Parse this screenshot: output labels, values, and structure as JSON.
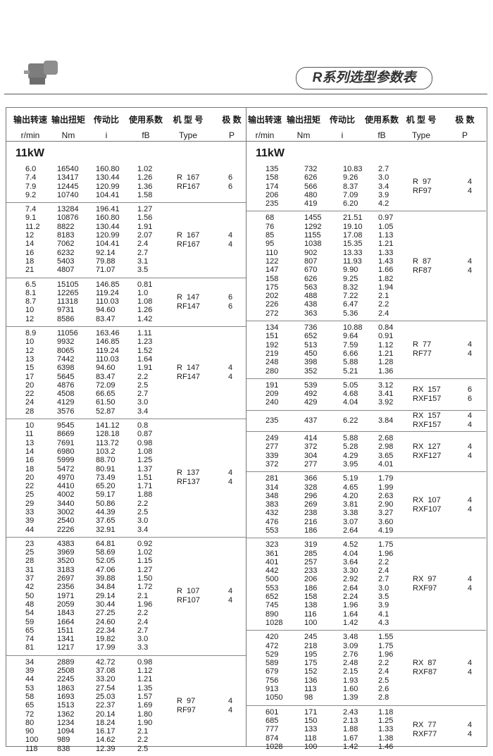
{
  "page_title": "R系列选型参数表",
  "headers": [
    {
      "zh": "输出转速",
      "en": "r/min"
    },
    {
      "zh": "输出扭矩",
      "en": "Nm"
    },
    {
      "zh": "传动比",
      "en": "i"
    },
    {
      "zh": "使用系数",
      "en": "fB"
    },
    {
      "zh": "机 型 号",
      "en": "Type"
    },
    {
      "zh": "极  数",
      "en": "P"
    }
  ],
  "left": {
    "power": "11kW",
    "groups": [
      {
        "type": [
          "R  167",
          "RF167"
        ],
        "poles": [
          "6",
          "6"
        ],
        "rows": [
          [
            "6.0",
            "16540",
            "160.80",
            "1.02"
          ],
          [
            "7.4",
            "13417",
            "130.44",
            "1.26"
          ],
          [
            "7.9",
            "12445",
            "120.99",
            "1.36"
          ],
          [
            "9.2",
            "10740",
            "104.41",
            "1.58"
          ]
        ]
      },
      {
        "type": [
          "R  167",
          "RF167"
        ],
        "poles": [
          "4",
          "4"
        ],
        "rows": [
          [
            "7.4",
            "13284",
            "196.41",
            "1.27"
          ],
          [
            "9.1",
            "10876",
            "160.80",
            "1.56"
          ],
          [
            "11.2",
            "8822",
            "130.44",
            "1.91"
          ],
          [
            "12",
            "8183",
            "120.99",
            "2.07"
          ],
          [
            "14",
            "7062",
            "104.41",
            "2.4"
          ],
          [
            "16",
            "6232",
            "92.14",
            "2.7"
          ],
          [
            "18",
            "5403",
            "79.88",
            "3.1"
          ],
          [
            "21",
            "4807",
            "71.07",
            "3.5"
          ]
        ]
      },
      {
        "type": [
          "R  147",
          "RF147"
        ],
        "poles": [
          "6",
          "6"
        ],
        "rows": [
          [
            "6.5",
            "15105",
            "146.85",
            "0.81"
          ],
          [
            "8.1",
            "12265",
            "119.24",
            "1.0"
          ],
          [
            "8.7",
            "11318",
            "110.03",
            "1.08"
          ],
          [
            "10",
            "9731",
            "94.60",
            "1.26"
          ],
          [
            "12",
            "8586",
            "83.47",
            "1.42"
          ]
        ]
      },
      {
        "type": [
          "R  147",
          "RF147"
        ],
        "poles": [
          "4",
          "4"
        ],
        "rows": [
          [
            "8.9",
            "11056",
            "163.46",
            "1.11"
          ],
          [
            "10",
            "9932",
            "146.85",
            "1.23"
          ],
          [
            "12",
            "8065",
            "119.24",
            "1.52"
          ],
          [
            "13",
            "7442",
            "110.03",
            "1.64"
          ],
          [
            "15",
            "6398",
            "94.60",
            "1.91"
          ],
          [
            "17",
            "5645",
            "83.47",
            "2.2"
          ],
          [
            "20",
            "4876",
            "72.09",
            "2.5"
          ],
          [
            "22",
            "4508",
            "66.65",
            "2.7"
          ],
          [
            "24",
            "4129",
            "61.50",
            "3.0"
          ],
          [
            "28",
            "3576",
            "52.87",
            "3.4"
          ]
        ]
      },
      {
        "type": [
          "R  137",
          "RF137"
        ],
        "poles": [
          "4",
          "4"
        ],
        "rows": [
          [
            "10",
            "9545",
            "141.12",
            "0.8"
          ],
          [
            "11",
            "8669",
            "128.18",
            "0.87"
          ],
          [
            "13",
            "7691",
            "113.72",
            "0.98"
          ],
          [
            "14",
            "6980",
            "103.2",
            "1.08"
          ],
          [
            "16",
            "5999",
            "88.70",
            "1.25"
          ],
          [
            "18",
            "5472",
            "80.91",
            "1.37"
          ],
          [
            "20",
            "4970",
            "73.49",
            "1.51"
          ],
          [
            "22",
            "4410",
            "65.20",
            "1.71"
          ],
          [
            "25",
            "4002",
            "59.17",
            "1.88"
          ],
          [
            "29",
            "3440",
            "50.86",
            "2.2"
          ],
          [
            "33",
            "3002",
            "44.39",
            "2.5"
          ],
          [
            "39",
            "2540",
            "37.65",
            "3.0"
          ],
          [
            "44",
            "2226",
            "32.91",
            "3.4"
          ]
        ]
      },
      {
        "type": [
          "R  107",
          "RF107"
        ],
        "poles": [
          "4",
          "4"
        ],
        "rows": [
          [
            "23",
            "4383",
            "64.81",
            "0.92"
          ],
          [
            "25",
            "3969",
            "58.69",
            "1.02"
          ],
          [
            "28",
            "3520",
            "52.05",
            "1.15"
          ],
          [
            "31",
            "3183",
            "47.06",
            "1.27"
          ],
          [
            "37",
            "2697",
            "39.88",
            "1.50"
          ],
          [
            "42",
            "2356",
            "34.84",
            "1.72"
          ],
          [
            "50",
            "1971",
            "29.14",
            "2.1"
          ],
          [
            "48",
            "2059",
            "30.44",
            "1.96"
          ],
          [
            "54",
            "1843",
            "27.25",
            "2.2"
          ],
          [
            "59",
            "1664",
            "24.60",
            "2.4"
          ],
          [
            "65",
            "1511",
            "22.34",
            "2.7"
          ],
          [
            "74",
            "1341",
            "19.82",
            "3.0"
          ],
          [
            "81",
            "1217",
            "17.99",
            "3.3"
          ]
        ]
      },
      {
        "type": [
          "R  97",
          "RF97"
        ],
        "poles": [
          "4",
          "4"
        ],
        "rows": [
          [
            "34",
            "2889",
            "42.72",
            "0.98"
          ],
          [
            "39",
            "2508",
            "37.08",
            "1.12"
          ],
          [
            "44",
            "2245",
            "33.20",
            "1.21"
          ],
          [
            "53",
            "1863",
            "27.54",
            "1.35"
          ],
          [
            "58",
            "1693",
            "25.03",
            "1.57"
          ],
          [
            "65",
            "1513",
            "22.37",
            "1.69"
          ],
          [
            "72",
            "1362",
            "20.14",
            "1.80"
          ],
          [
            "80",
            "1234",
            "18.24",
            "1.90"
          ],
          [
            "90",
            "1094",
            "16.17",
            "2.1"
          ],
          [
            "100",
            "989",
            "14.62",
            "2.2"
          ],
          [
            "118",
            "838",
            "12.39",
            "2.5"
          ]
        ]
      }
    ]
  },
  "right": {
    "power": "11kW",
    "groups": [
      {
        "type": [
          "R  97",
          "RF97"
        ],
        "poles": [
          "4",
          "4"
        ],
        "rows": [
          [
            "135",
            "732",
            "10.83",
            "2.7"
          ],
          [
            "158",
            "626",
            "9.26",
            "3.0"
          ],
          [
            "174",
            "566",
            "8.37",
            "3.4"
          ],
          [
            "206",
            "480",
            "7.09",
            "3.9"
          ],
          [
            "235",
            "419",
            "6.20",
            "4.2"
          ]
        ]
      },
      {
        "type": [
          "R  87",
          "RF87"
        ],
        "poles": [
          "4",
          "4"
        ],
        "rows": [
          [
            "68",
            "1455",
            "21.51",
            "0.97"
          ],
          [
            "76",
            "1292",
            "19.10",
            "1.05"
          ],
          [
            "85",
            "1155",
            "17.08",
            "1.13"
          ],
          [
            "95",
            "1038",
            "15.35",
            "1.21"
          ],
          [
            "110",
            "902",
            "13.33",
            "1.33"
          ],
          [
            "122",
            "807",
            "11.93",
            "1.43"
          ],
          [
            "147",
            "670",
            "9.90",
            "1.66"
          ],
          [
            "158",
            "626",
            "9.25",
            "1.82"
          ],
          [
            "175",
            "563",
            "8.32",
            "1.94"
          ],
          [
            "202",
            "488",
            "7.22",
            "2.1"
          ],
          [
            "226",
            "438",
            "6.47",
            "2.2"
          ],
          [
            "272",
            "363",
            "5.36",
            "2.4"
          ]
        ]
      },
      {
        "type": [
          "R  77",
          "RF77"
        ],
        "poles": [
          "4",
          "4"
        ],
        "rows": [
          [
            "134",
            "736",
            "10.88",
            "0.84"
          ],
          [
            "151",
            "652",
            "9.64",
            "0.91"
          ],
          [
            "192",
            "513",
            "7.59",
            "1.12"
          ],
          [
            "219",
            "450",
            "6.66",
            "1.21"
          ],
          [
            "248",
            "398",
            "5.88",
            "1.28"
          ],
          [
            "280",
            "352",
            "5.21",
            "1.36"
          ]
        ]
      },
      {
        "type": [
          "RX  157",
          "RXF157"
        ],
        "poles": [
          "6",
          "6"
        ],
        "rows": [
          [
            "191",
            "539",
            "5.05",
            "3.12"
          ],
          [
            "209",
            "492",
            "4.68",
            "3.41"
          ],
          [
            "240",
            "429",
            "4.04",
            "3.92"
          ]
        ]
      },
      {
        "type": [
          "RX  157",
          "RXF157"
        ],
        "poles": [
          "4",
          "4"
        ],
        "rows": [
          [
            "235",
            "437",
            "6.22",
            "3.84"
          ]
        ]
      },
      {
        "type": [
          "RX  127",
          "RXF127"
        ],
        "poles": [
          "4",
          "4"
        ],
        "rows": [
          [
            "249",
            "414",
            "5.88",
            "2.68"
          ],
          [
            "277",
            "372",
            "5.28",
            "2.98"
          ],
          [
            "339",
            "304",
            "4.29",
            "3.65"
          ],
          [
            "372",
            "277",
            "3.95",
            "4.01"
          ]
        ]
      },
      {
        "type": [
          "RX  107",
          "RXF107"
        ],
        "poles": [
          "4",
          "4"
        ],
        "rows": [
          [
            "281",
            "366",
            "5.19",
            "1.79"
          ],
          [
            "314",
            "328",
            "4.65",
            "1.99"
          ],
          [
            "348",
            "296",
            "4.20",
            "2.63"
          ],
          [
            "383",
            "269",
            "3.81",
            "2.90"
          ],
          [
            "432",
            "238",
            "3.38",
            "3.27"
          ],
          [
            "476",
            "216",
            "3.07",
            "3.60"
          ],
          [
            "553",
            "186",
            "2.64",
            "4.19"
          ]
        ]
      },
      {
        "type": [
          "RX  97",
          "RXF97"
        ],
        "poles": [
          "4",
          "4"
        ],
        "rows": [
          [
            "323",
            "319",
            "4.52",
            "1.75"
          ],
          [
            "361",
            "285",
            "4.04",
            "1.96"
          ],
          [
            "401",
            "257",
            "3.64",
            "2.2"
          ],
          [
            "442",
            "233",
            "3.30",
            "2.4"
          ],
          [
            "500",
            "206",
            "2.92",
            "2.7"
          ],
          [
            "553",
            "186",
            "2.64",
            "3.0"
          ],
          [
            "652",
            "158",
            "2.24",
            "3.5"
          ],
          [
            "745",
            "138",
            "1.96",
            "3.9"
          ],
          [
            "890",
            "116",
            "1.64",
            "4.1"
          ],
          [
            "1028",
            "100",
            "1.42",
            "4.3"
          ]
        ]
      },
      {
        "type": [
          "RX  87",
          "RXF87"
        ],
        "poles": [
          "4",
          "4"
        ],
        "rows": [
          [
            "420",
            "245",
            "3.48",
            "1.55"
          ],
          [
            "472",
            "218",
            "3.09",
            "1.75"
          ],
          [
            "529",
            "195",
            "2.76",
            "1.96"
          ],
          [
            "589",
            "175",
            "2.48",
            "2.2"
          ],
          [
            "679",
            "152",
            "2.15",
            "2.4"
          ],
          [
            "756",
            "136",
            "1.93",
            "2.5"
          ],
          [
            "913",
            "113",
            "1.60",
            "2.6"
          ],
          [
            "1050",
            "98",
            "1.39",
            "2.8"
          ]
        ]
      },
      {
        "type": [
          "RX  77",
          "RXF77"
        ],
        "poles": [
          "4",
          "4"
        ],
        "rows": [
          [
            "601",
            "171",
            "2.43",
            "1.18"
          ],
          [
            "685",
            "150",
            "2.13",
            "1.25"
          ],
          [
            "777",
            "133",
            "1.88",
            "1.33"
          ],
          [
            "874",
            "118",
            "1.67",
            "1.38"
          ],
          [
            "1028",
            "100",
            "1.42",
            "1.46"
          ]
        ]
      }
    ]
  }
}
